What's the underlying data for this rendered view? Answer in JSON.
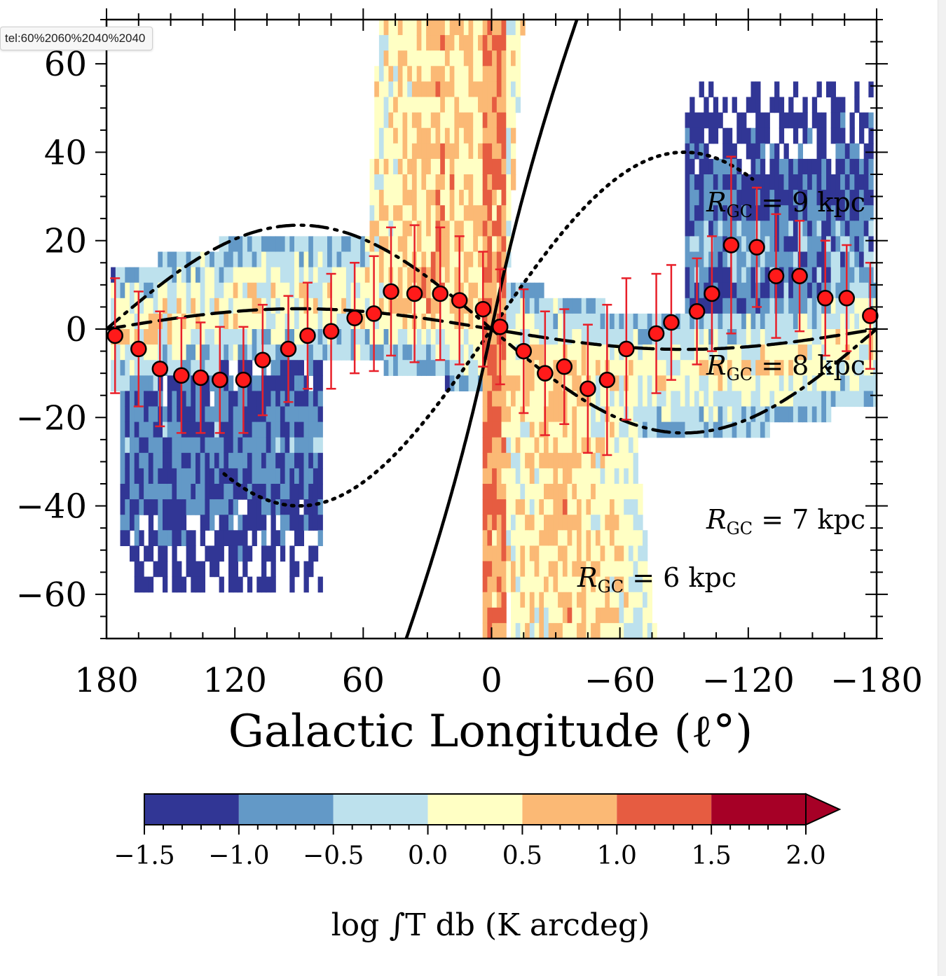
{
  "browser": {
    "link_tooltip": "tel:60%2060%2040%2040"
  },
  "chart_data": {
    "type": "scatter",
    "xlabel": "Galactic Longitude (ℓ°)",
    "ylabel": "",
    "xlim": [
      180,
      -180
    ],
    "ylim": [
      -70,
      70
    ],
    "x_ticks": [
      180,
      120,
      60,
      0,
      -60,
      -120,
      -180
    ],
    "x_tick_labels": [
      "180",
      "120",
      "60",
      "0",
      "−60",
      "−120",
      "−180"
    ],
    "y_ticks": [
      60,
      40,
      20,
      0,
      -20,
      -40,
      -60
    ],
    "y_tick_labels": [
      "60",
      "40",
      "20",
      "0",
      "−20",
      "−40",
      "−60"
    ],
    "background": "heatmap of integrated HI emission log ∫T db",
    "series": [
      {
        "type": "scatter_errorbar",
        "color": "#ff1a1a",
        "errorbar_color": "#e8202a",
        "points": [
          {
            "x": 176,
            "y": -1.5,
            "err": 13
          },
          {
            "x": 165,
            "y": -4.5,
            "err": 13
          },
          {
            "x": 155,
            "y": -9,
            "err": 13
          },
          {
            "x": 145,
            "y": -10.5,
            "err": 13
          },
          {
            "x": 136,
            "y": -11,
            "err": 12.5
          },
          {
            "x": 127,
            "y": -11.5,
            "err": 12
          },
          {
            "x": 116,
            "y": -11.5,
            "err": 12
          },
          {
            "x": 107,
            "y": -7,
            "err": 12.5
          },
          {
            "x": 95,
            "y": -4.5,
            "err": 12
          },
          {
            "x": 86,
            "y": -1.5,
            "err": 12
          },
          {
            "x": 75,
            "y": -0.5,
            "err": 13
          },
          {
            "x": 64,
            "y": 2.5,
            "err": 12.5
          },
          {
            "x": 55,
            "y": 3.5,
            "err": 13
          },
          {
            "x": 47,
            "y": 8.5,
            "err": 14.5
          },
          {
            "x": 36,
            "y": 8,
            "err": 15.5
          },
          {
            "x": 24,
            "y": 8,
            "err": 15
          },
          {
            "x": 15,
            "y": 6.5,
            "err": 14.5
          },
          {
            "x": 4,
            "y": 4.5,
            "err": 13
          },
          {
            "x": -4,
            "y": 0.5,
            "err": 13
          },
          {
            "x": -15,
            "y": -5,
            "err": 14
          },
          {
            "x": -25,
            "y": -10,
            "err": 14
          },
          {
            "x": -34,
            "y": -8.5,
            "err": 13
          },
          {
            "x": -45,
            "y": -13.5,
            "err": 14.5
          },
          {
            "x": -54,
            "y": -11.5,
            "err": 17
          },
          {
            "x": -63,
            "y": -4.5,
            "err": 16
          },
          {
            "x": -77,
            "y": -1,
            "err": 13.5
          },
          {
            "x": -84,
            "y": 1.5,
            "err": 13
          },
          {
            "x": -96,
            "y": 4,
            "err": 12
          },
          {
            "x": -103,
            "y": 8,
            "err": 13
          },
          {
            "x": -112,
            "y": 19,
            "err": 20
          },
          {
            "x": -124,
            "y": 18.5,
            "err": 13.5
          },
          {
            "x": -133,
            "y": 12,
            "err": 14
          },
          {
            "x": -144,
            "y": 12,
            "err": 12.5
          },
          {
            "x": -156,
            "y": 7,
            "err": 13
          },
          {
            "x": -166,
            "y": 7,
            "err": 12
          },
          {
            "x": -177,
            "y": 3,
            "err": 12
          }
        ]
      },
      {
        "name": "R_GC = 6 kpc",
        "style": "solid",
        "color": "#000000"
      },
      {
        "name": "R_GC = 7 kpc",
        "style": "dotted",
        "color": "#000000"
      },
      {
        "name": "R_GC = 8 kpc",
        "style": "dashed",
        "color": "#000000"
      },
      {
        "name": "R_GC = 9 kpc",
        "style": "dashdot",
        "color": "#000000"
      }
    ],
    "annotations": {
      "r6_pre": "R",
      "r6_sub": "GC",
      "r6_post": " = 6 kpc",
      "r7_pre": "R",
      "r7_sub": "GC",
      "r7_post": " = 7 kpc",
      "r8_pre": "R",
      "r8_sub": "GC",
      "r8_post": " = 8 kpc",
      "r9_pre": "R",
      "r9_sub": "GC",
      "r9_post": " = 9 kpc"
    },
    "colorbar": {
      "label": "log ∫T db (K arcdeg)",
      "boundaries": [
        -1.5,
        -1.0,
        -0.5,
        0.0,
        0.5,
        1.0,
        1.5,
        2.0
      ],
      "tick_labels": [
        "−1.5",
        "−1.0",
        "−0.5",
        "0.0",
        "0.5",
        "1.0",
        "1.5",
        "2.0"
      ],
      "colors": [
        "#313695",
        "#6399c7",
        "#bde1ed",
        "#ffffc4",
        "#fbb975",
        "#e65c41",
        "#a60026"
      ],
      "extend": "max"
    }
  }
}
